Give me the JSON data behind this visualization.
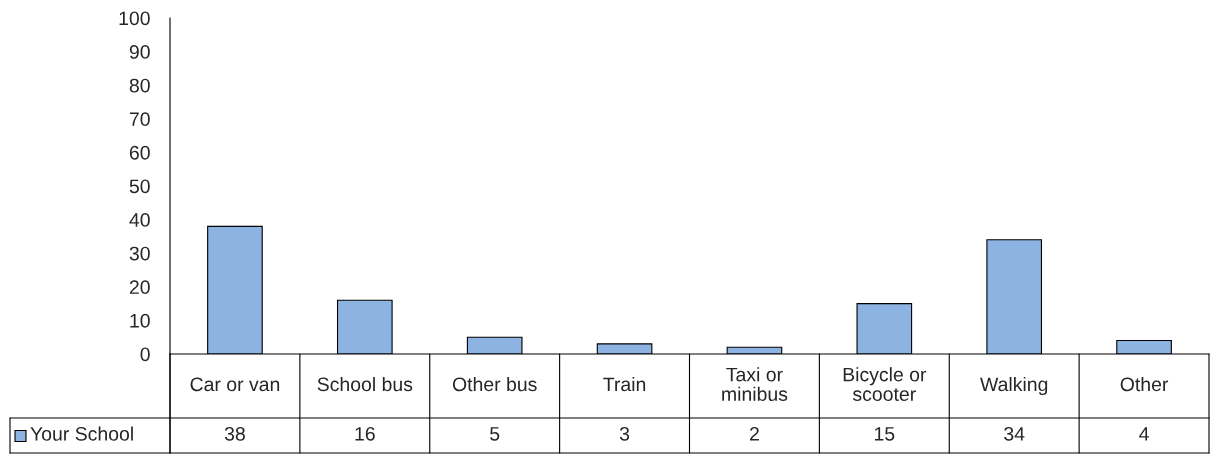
{
  "chart_data": {
    "type": "bar",
    "categories": [
      "Car or van",
      "School bus",
      "Other bus",
      "Train",
      "Taxi or\nminibus",
      "Bicycle or\nscooter",
      "Walking",
      "Other"
    ],
    "series": [
      {
        "name": "Your School",
        "color": "#8db3e2",
        "values": [
          38,
          16,
          5,
          3,
          2,
          15,
          34,
          4
        ]
      }
    ],
    "ylim": [
      0,
      100
    ],
    "yticks": [
      0,
      10,
      20,
      30,
      40,
      50,
      60,
      70,
      80,
      90,
      100
    ],
    "grid": false,
    "legend": "bottom left",
    "data_labels": true
  }
}
